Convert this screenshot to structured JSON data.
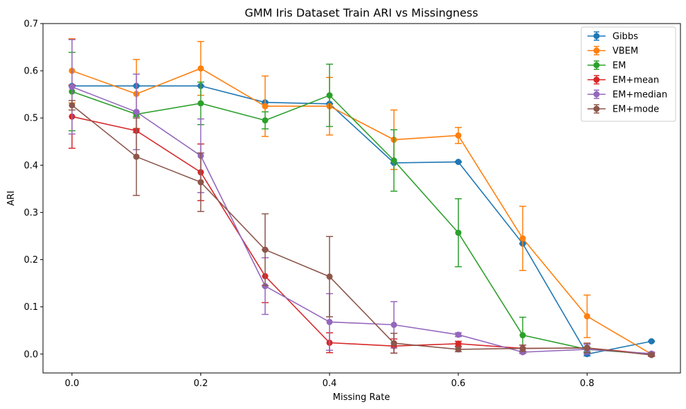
{
  "chart_data": {
    "type": "line",
    "title": "GMM Iris Dataset Train ARI vs Missingness",
    "xlabel": "Missing Rate",
    "ylabel": "ARI",
    "xlim": [
      -0.045,
      0.945
    ],
    "ylim": [
      -0.04,
      0.7
    ],
    "x_ticks": [
      "0.0",
      "0.2",
      "0.4",
      "0.6",
      "0.8"
    ],
    "x_tick_values": [
      0.0,
      0.2,
      0.4,
      0.6,
      0.8
    ],
    "y_ticks": [
      "0.0",
      "0.1",
      "0.2",
      "0.3",
      "0.4",
      "0.5",
      "0.6",
      "0.7"
    ],
    "y_tick_values": [
      0.0,
      0.1,
      0.2,
      0.3,
      0.4,
      0.5,
      0.6,
      0.7
    ],
    "grid": false,
    "legend_position": "top-right",
    "x": [
      0.0,
      0.1,
      0.2,
      0.3,
      0.4,
      0.5,
      0.6,
      0.7,
      0.8,
      0.9
    ],
    "series": [
      {
        "name": "Gibbs",
        "color": "#1f77b4",
        "values": [
          0.568,
          0.568,
          0.568,
          0.533,
          0.53,
          0.405,
          0.407,
          0.234,
          0.0,
          0.027
        ],
        "errors": [
          0.001,
          0.001,
          0.001,
          0.001,
          0.001,
          0.001,
          0.001,
          0.001,
          0.004,
          0.001
        ]
      },
      {
        "name": "VBEM",
        "color": "#ff7f0e",
        "values": [
          0.6,
          0.551,
          0.605,
          0.525,
          0.525,
          0.454,
          0.463,
          0.245,
          0.08,
          0.0
        ],
        "errors": [
          0.068,
          0.073,
          0.057,
          0.064,
          0.061,
          0.063,
          0.017,
          0.068,
          0.045,
          0.004
        ]
      },
      {
        "name": "EM",
        "color": "#2ca02c",
        "values": [
          0.556,
          0.508,
          0.531,
          0.495,
          0.548,
          0.41,
          0.257,
          0.04,
          0.01,
          0.0
        ],
        "errors": [
          0.083,
          0.005,
          0.045,
          0.018,
          0.066,
          0.065,
          0.072,
          0.038,
          0.005,
          0.003
        ]
      },
      {
        "name": "EM+mean",
        "color": "#d62728",
        "values": [
          0.503,
          0.473,
          0.385,
          0.165,
          0.024,
          0.017,
          0.022,
          0.012,
          0.013,
          0.0
        ],
        "errors": [
          0.067,
          0.004,
          0.06,
          0.056,
          0.021,
          0.015,
          0.005,
          0.007,
          0.01,
          0.003
        ]
      },
      {
        "name": "EM+median",
        "color": "#9467bd",
        "values": [
          0.566,
          0.513,
          0.42,
          0.144,
          0.068,
          0.062,
          0.041,
          0.004,
          0.01,
          0.001
        ],
        "errors": [
          0.1,
          0.08,
          0.078,
          0.06,
          0.06,
          0.049,
          0.004,
          0.003,
          0.01,
          0.003
        ]
      },
      {
        "name": "EM+mode",
        "color": "#8c564b",
        "values": [
          0.527,
          0.418,
          0.364,
          0.221,
          0.164,
          0.023,
          0.01,
          0.012,
          0.013,
          -0.002
        ],
        "errors": [
          0.01,
          0.082,
          0.062,
          0.076,
          0.085,
          0.021,
          0.005,
          0.007,
          0.01,
          0.003
        ]
      }
    ]
  }
}
